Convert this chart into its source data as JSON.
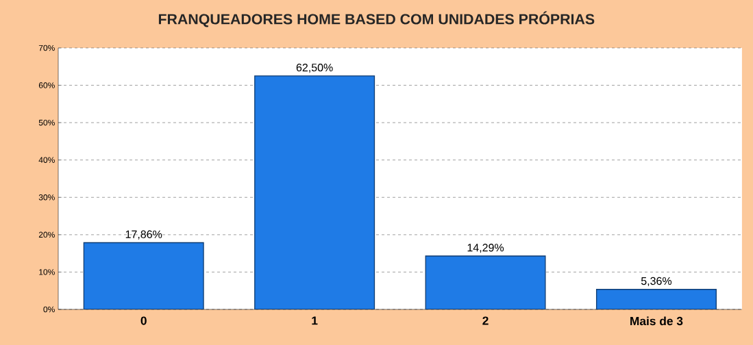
{
  "chart_data": {
    "type": "bar",
    "title": "FRANQUEADORES HOME BASED COM UNIDADES PRÓPRIAS",
    "categories": [
      "0",
      "1",
      "2",
      "Mais de 3"
    ],
    "values": [
      17.86,
      62.5,
      14.29,
      5.36
    ],
    "value_labels": [
      "17,86%",
      "62,50%",
      "14,29%",
      "5,36%"
    ],
    "color": "#1f7be6",
    "ylim": [
      0,
      70
    ],
    "yticks": [
      {
        "value": 0,
        "label": "0%"
      },
      {
        "value": 10,
        "label": "10%"
      },
      {
        "value": 20,
        "label": "20%"
      },
      {
        "value": 30,
        "label": "30%"
      },
      {
        "value": 40,
        "label": "40%"
      },
      {
        "value": 50,
        "label": "50%"
      },
      {
        "value": 60,
        "label": "60%"
      },
      {
        "value": 70,
        "label": "70%"
      }
    ],
    "grid": "y"
  }
}
